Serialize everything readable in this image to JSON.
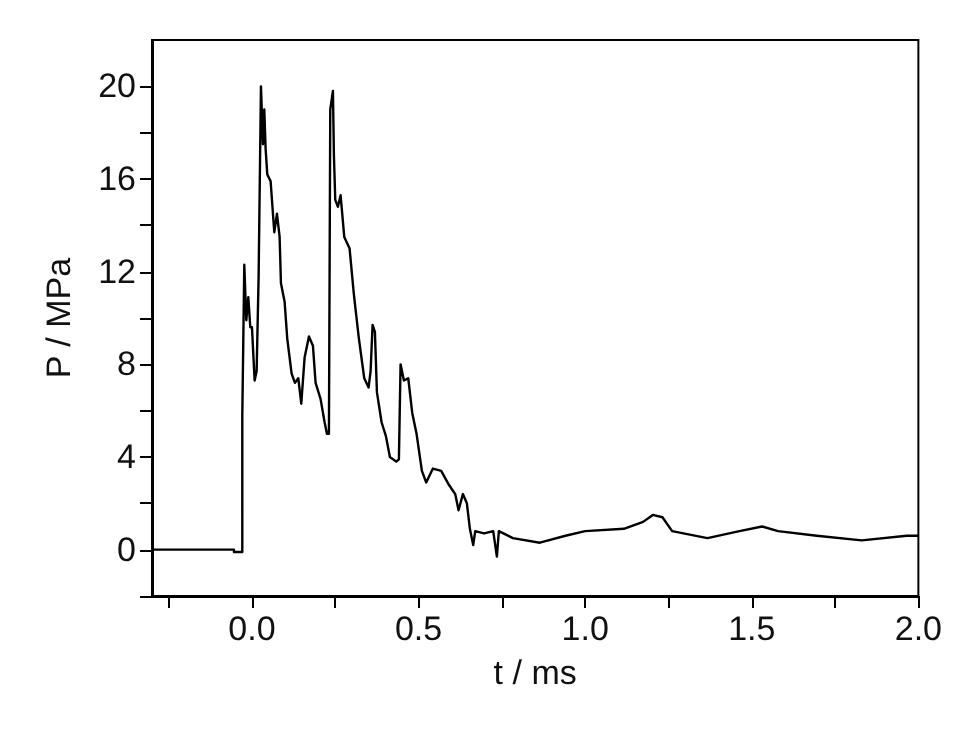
{
  "chart_data": {
    "type": "line",
    "xlabel": "t / ms",
    "ylabel": "P / MPa",
    "xlim": [
      -0.3,
      2.0
    ],
    "ylim": [
      -2,
      22
    ],
    "xticks": [
      {
        "value": -0.25,
        "label": null
      },
      {
        "value": 0,
        "label": "0.0"
      },
      {
        "value": 0.25,
        "label": null
      },
      0.5,
      {
        "value": 0.75,
        "label": null
      },
      {
        "value": 1,
        "label": "1.0"
      },
      {
        "value": 1.25,
        "label": null
      },
      1.5,
      {
        "value": 1.75,
        "label": null
      },
      {
        "value": 2,
        "label": "2.0"
      }
    ],
    "yticks": [
      {
        "value": -2,
        "label": null
      },
      0,
      {
        "value": 2,
        "label": null
      },
      4,
      {
        "value": 6,
        "label": null
      },
      8,
      {
        "value": 10,
        "label": null
      },
      12,
      {
        "value": 14,
        "label": null
      },
      16,
      {
        "value": 18,
        "label": null
      },
      20
    ],
    "grid": false,
    "marker": "none",
    "line_style": "solid",
    "series": [
      {
        "color": "#000000",
        "x": [
          -0.3,
          -0.054,
          -0.054,
          -0.029,
          -0.029,
          -0.023,
          -0.017,
          -0.011,
          -0.005,
          0.0,
          0.008,
          0.014,
          0.02,
          0.023,
          0.027,
          0.033,
          0.037,
          0.041,
          0.046,
          0.056,
          0.067,
          0.075,
          0.083,
          0.087,
          0.098,
          0.106,
          0.119,
          0.129,
          0.139,
          0.148,
          0.158,
          0.171,
          0.183,
          0.191,
          0.206,
          0.218,
          0.225,
          0.231,
          0.235,
          0.243,
          0.246,
          0.25,
          0.258,
          0.266,
          0.277,
          0.293,
          0.306,
          0.321,
          0.337,
          0.35,
          0.356,
          0.362,
          0.369,
          0.375,
          0.389,
          0.402,
          0.414,
          0.433,
          0.441,
          0.446,
          0.456,
          0.469,
          0.481,
          0.494,
          0.51,
          0.523,
          0.543,
          0.568,
          0.591,
          0.61,
          0.62,
          0.633,
          0.645,
          0.654,
          0.664,
          0.67,
          0.697,
          0.724,
          0.735,
          0.741,
          0.783,
          0.864,
          0.941,
          1.0,
          1.116,
          1.174,
          1.203,
          1.232,
          1.261,
          1.367,
          1.463,
          1.531,
          1.579,
          1.695,
          1.83,
          1.965,
          2.0
        ],
        "values": [
          0.0,
          0.0,
          -0.1,
          -0.1,
          5.8,
          12.3,
          9.9,
          10.9,
          9.6,
          9.6,
          7.3,
          7.7,
          11.8,
          11.8,
          20.0,
          17.5,
          19.0,
          17.3,
          16.2,
          15.9,
          13.7,
          14.5,
          13.5,
          11.5,
          10.7,
          9.1,
          7.6,
          7.2,
          7.4,
          6.3,
          8.3,
          9.2,
          8.8,
          7.2,
          6.5,
          5.5,
          5.0,
          5.0,
          19.0,
          19.8,
          17.0,
          15.1,
          14.8,
          15.3,
          13.5,
          13.0,
          11.0,
          9.1,
          7.4,
          7.0,
          7.7,
          9.7,
          9.4,
          6.8,
          5.5,
          4.9,
          4.0,
          3.8,
          3.9,
          8.0,
          7.3,
          7.4,
          5.9,
          5.0,
          3.4,
          2.9,
          3.5,
          3.4,
          2.8,
          2.4,
          1.7,
          2.4,
          2.0,
          0.9,
          0.2,
          0.8,
          0.7,
          0.8,
          -0.3,
          0.8,
          0.5,
          0.3,
          0.6,
          0.8,
          0.9,
          1.2,
          1.5,
          1.4,
          0.8,
          0.5,
          0.8,
          1.0,
          0.8,
          0.6,
          0.4,
          0.6,
          0.6
        ]
      }
    ]
  }
}
